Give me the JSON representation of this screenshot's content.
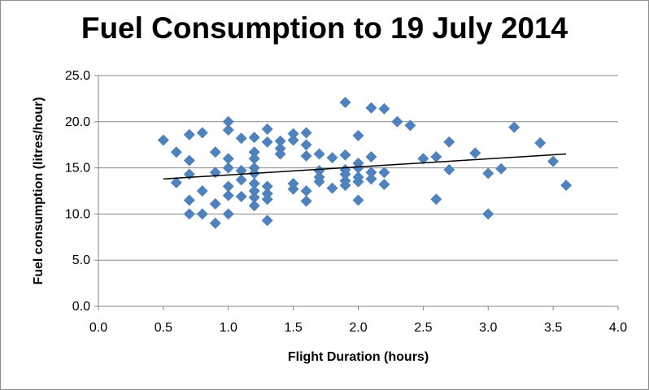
{
  "chart_data": {
    "type": "scatter",
    "title": "Fuel Consumption to 19 July 2014",
    "xlabel": "Flight Duration (hours)",
    "ylabel": "Fuel consumption (litres/hour)",
    "xlim": [
      0,
      4
    ],
    "ylim": [
      0,
      25
    ],
    "x_ticks": [
      "0.0",
      "0.5",
      "1.0",
      "1.5",
      "2.0",
      "2.5",
      "3.0",
      "3.5",
      "4.0"
    ],
    "y_ticks": [
      "0.0",
      "5.0",
      "10.0",
      "15.0",
      "20.0",
      "25.0"
    ],
    "grid": "horizontal",
    "marker_color": "#4f81bd",
    "trendline": {
      "type": "linear",
      "x": [
        0.5,
        3.6
      ],
      "y": [
        13.8,
        16.5
      ],
      "color": "#000000"
    },
    "series": [
      {
        "points": [
          [
            0.5,
            18.0
          ],
          [
            0.6,
            16.7
          ],
          [
            0.6,
            13.4
          ],
          [
            0.7,
            18.6
          ],
          [
            0.7,
            15.8
          ],
          [
            0.7,
            14.3
          ],
          [
            0.7,
            11.5
          ],
          [
            0.7,
            10.0
          ],
          [
            0.8,
            18.8
          ],
          [
            0.8,
            12.5
          ],
          [
            0.8,
            10.0
          ],
          [
            0.9,
            16.7
          ],
          [
            0.9,
            14.5
          ],
          [
            0.9,
            11.1
          ],
          [
            0.9,
            9.0
          ],
          [
            1.0,
            20.0
          ],
          [
            1.0,
            19.1
          ],
          [
            1.0,
            16.0
          ],
          [
            1.0,
            15.0
          ],
          [
            1.0,
            13.0
          ],
          [
            1.0,
            12.0
          ],
          [
            1.0,
            10.0
          ],
          [
            1.1,
            18.2
          ],
          [
            1.1,
            14.7
          ],
          [
            1.1,
            13.7
          ],
          [
            1.1,
            11.9
          ],
          [
            1.2,
            18.3
          ],
          [
            1.2,
            16.7
          ],
          [
            1.2,
            16.0
          ],
          [
            1.2,
            15.0
          ],
          [
            1.2,
            14.4
          ],
          [
            1.2,
            13.3
          ],
          [
            1.2,
            12.5
          ],
          [
            1.2,
            11.8
          ],
          [
            1.2,
            10.9
          ],
          [
            1.3,
            19.2
          ],
          [
            1.3,
            17.8
          ],
          [
            1.3,
            13.0
          ],
          [
            1.3,
            12.2
          ],
          [
            1.3,
            11.6
          ],
          [
            1.3,
            9.3
          ],
          [
            1.4,
            17.9
          ],
          [
            1.4,
            17.1
          ],
          [
            1.4,
            16.5
          ],
          [
            1.5,
            18.7
          ],
          [
            1.5,
            18.0
          ],
          [
            1.5,
            13.3
          ],
          [
            1.5,
            12.7
          ],
          [
            1.6,
            18.8
          ],
          [
            1.6,
            17.5
          ],
          [
            1.6,
            16.3
          ],
          [
            1.6,
            12.5
          ],
          [
            1.6,
            11.4
          ],
          [
            1.7,
            16.5
          ],
          [
            1.7,
            14.7
          ],
          [
            1.7,
            14.0
          ],
          [
            1.7,
            13.5
          ],
          [
            1.8,
            16.1
          ],
          [
            1.8,
            12.8
          ],
          [
            1.9,
            22.1
          ],
          [
            1.9,
            16.4
          ],
          [
            1.9,
            14.8
          ],
          [
            1.9,
            14.3
          ],
          [
            1.9,
            13.6
          ],
          [
            1.9,
            13.1
          ],
          [
            2.0,
            18.5
          ],
          [
            2.0,
            15.5
          ],
          [
            2.0,
            15.0
          ],
          [
            2.0,
            14.0
          ],
          [
            2.0,
            13.5
          ],
          [
            2.0,
            11.5
          ],
          [
            2.1,
            21.5
          ],
          [
            2.1,
            16.2
          ],
          [
            2.1,
            14.5
          ],
          [
            2.1,
            13.8
          ],
          [
            2.2,
            21.4
          ],
          [
            2.2,
            14.5
          ],
          [
            2.2,
            13.2
          ],
          [
            2.3,
            20.0
          ],
          [
            2.4,
            19.6
          ],
          [
            2.5,
            16.0
          ],
          [
            2.6,
            16.2
          ],
          [
            2.6,
            11.6
          ],
          [
            2.7,
            17.8
          ],
          [
            2.7,
            14.8
          ],
          [
            2.9,
            16.6
          ],
          [
            3.0,
            14.4
          ],
          [
            3.0,
            10.0
          ],
          [
            3.1,
            14.9
          ],
          [
            3.2,
            19.4
          ],
          [
            3.4,
            17.7
          ],
          [
            3.5,
            15.7
          ],
          [
            3.6,
            13.1
          ]
        ]
      }
    ]
  }
}
